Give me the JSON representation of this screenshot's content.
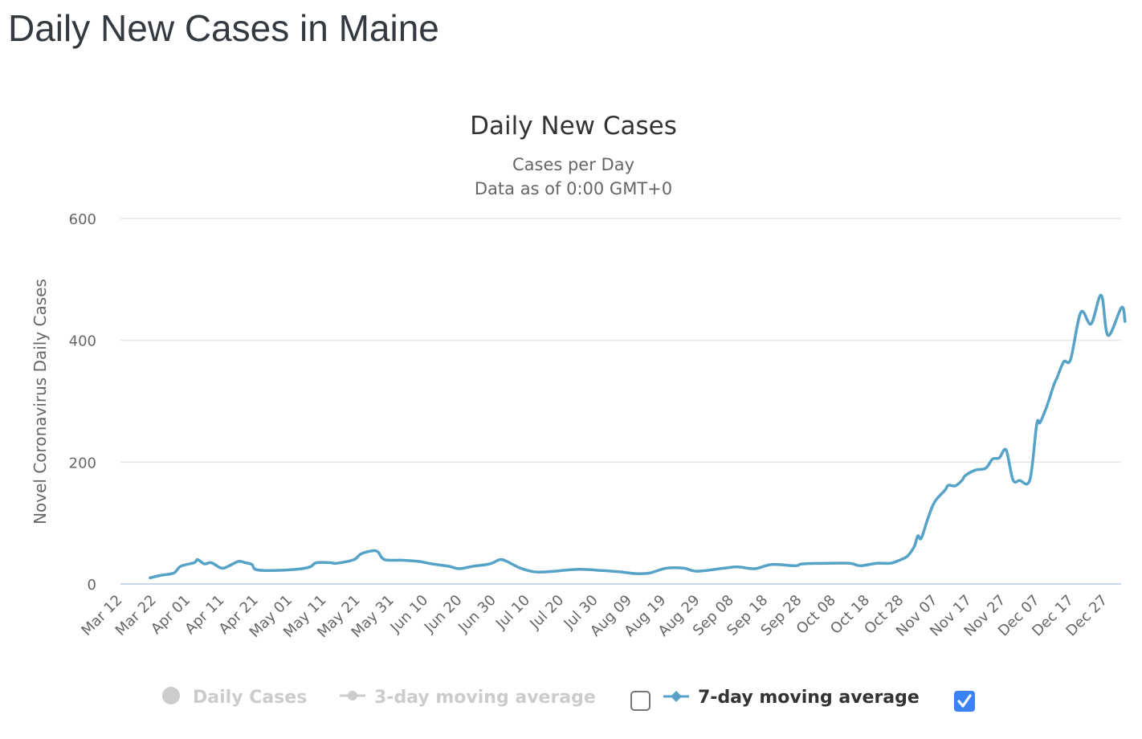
{
  "page": {
    "title": "Daily New Cases in Maine"
  },
  "chart_data": {
    "type": "line",
    "title": "Daily New Cases",
    "subtitle_lines": [
      "Cases per Day",
      "Data as of 0:00 GMT+0"
    ],
    "xlabel": "",
    "ylabel": "Novel Coronavirus Daily Cases",
    "ylim": [
      0,
      600
    ],
    "yticks": [
      0,
      200,
      400,
      600
    ],
    "grid": true,
    "x_start_label": "Mar 12",
    "x_tick_labels": [
      "Mar 12",
      "Mar 22",
      "Apr 01",
      "Apr 11",
      "Apr 21",
      "May 01",
      "May 11",
      "May 21",
      "May 31",
      "Jun 10",
      "Jun 20",
      "Jun 30",
      "Jul 10",
      "Jul 20",
      "Jul 30",
      "Aug 09",
      "Aug 19",
      "Aug 29",
      "Sep 08",
      "Sep 18",
      "Sep 28",
      "Oct 08",
      "Oct 18",
      "Oct 28",
      "Nov 07",
      "Nov 17",
      "Nov 27",
      "Dec 07",
      "Dec 17",
      "Dec 27"
    ],
    "x_tick_interval_days": 10,
    "x_range_days": [
      0,
      295
    ],
    "series": [
      {
        "name": "7-day moving average",
        "color": "#56a3c7",
        "visible": true,
        "day_offsets": [
          8,
          11,
          15,
          17,
          21,
          22,
          24,
          26,
          29,
          31,
          34,
          36,
          38,
          39,
          43,
          51,
          55,
          57,
          61,
          63,
          68,
          70,
          73,
          75,
          77,
          82,
          87,
          91,
          96,
          99,
          103,
          108,
          111,
          113,
          117,
          121,
          125,
          134,
          141,
          146,
          151,
          155,
          160,
          165,
          169,
          177,
          181,
          186,
          191,
          198,
          200,
          207,
          214,
          217,
          222,
          226,
          229,
          231,
          233,
          234,
          235,
          237,
          239,
          242,
          243,
          245,
          247,
          248,
          251,
          254,
          256,
          258,
          260,
          262,
          264,
          267,
          269,
          270,
          272,
          274,
          275,
          277,
          279,
          282,
          285,
          288,
          290,
          294,
          295
        ],
        "values": [
          10,
          14,
          18,
          29,
          35,
          40,
          33,
          35,
          26,
          29,
          37,
          35,
          32,
          24,
          22,
          24,
          28,
          35,
          35,
          34,
          40,
          49,
          54,
          53,
          40,
          39,
          37,
          33,
          29,
          25,
          29,
          33,
          40,
          37,
          26,
          20,
          20,
          24,
          22,
          20,
          17,
          18,
          26,
          26,
          21,
          26,
          28,
          25,
          32,
          30,
          33,
          34,
          34,
          30,
          34,
          34,
          40,
          46,
          62,
          79,
          75,
          108,
          135,
          154,
          162,
          161,
          170,
          178,
          187,
          190,
          205,
          207,
          220,
          171,
          170,
          171,
          262,
          265,
          292,
          326,
          339,
          365,
          369,
          446,
          427,
          474,
          408,
          454,
          431
        ]
      }
    ]
  },
  "legend": {
    "items": [
      {
        "label": "Daily Cases",
        "symbol": "circle",
        "active": false,
        "color": "#cccccc"
      },
      {
        "label": "3-day moving average",
        "symbol": "line-circle",
        "active": false,
        "color": "#cccccc",
        "checked": false
      },
      {
        "label": "7-day moving average",
        "symbol": "line-diamond",
        "active": true,
        "color": "#56a3c7",
        "checked": true
      }
    ]
  },
  "colors": {
    "line": "#56a3c7",
    "grid": "#e6e6e6",
    "axis": "#ccd6eb",
    "checkbox_checked": "#3b82f6",
    "legend_inactive": "#cccccc",
    "legend_active": "#333333"
  }
}
